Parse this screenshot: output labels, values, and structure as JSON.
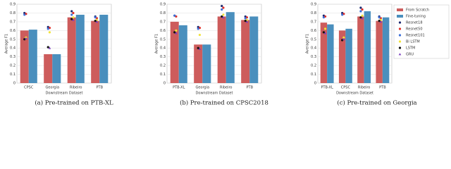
{
  "chart_data": [
    {
      "type": "bar",
      "caption": "(a) Pre-trained on PTB-XL",
      "x_label": "Downstream Dataset",
      "y_label": "Average F1",
      "categories": [
        "CPSC",
        "Georgia",
        "Ribeiro",
        "PTB"
      ],
      "ylim": [
        0,
        0.9
      ],
      "yticks": [
        0,
        0.1,
        0.2,
        0.3,
        0.4,
        0.5,
        0.6,
        0.7,
        0.8,
        0.9
      ],
      "legend": false,
      "series": [
        {
          "name": "From Scratch",
          "color": "#cd5c5c",
          "values": [
            0.6,
            0.33,
            0.75,
            0.71
          ]
        },
        {
          "name": "Fine-tuning",
          "color": "#4a8fbd",
          "values": [
            0.61,
            0.33,
            0.78,
            0.78
          ]
        },
        {
          "name": "Resnet18",
          "color": "#1c2a70",
          "marker": "circle",
          "values": [
            0.8,
            0.64,
            0.82,
            0.76
          ]
        },
        {
          "name": "Resnet50",
          "color": "#e0302a",
          "marker": "circle",
          "values": [
            0.79,
            0.63,
            0.8,
            0.74
          ]
        },
        {
          "name": "Resnet101",
          "color": "#3c6fd8",
          "marker": "circle",
          "values": [
            0.78,
            0.62,
            0.78,
            0.75
          ]
        },
        {
          "name": "Bi LSTM",
          "color": "#f2e33c",
          "marker": "circle",
          "values": [
            0.52,
            0.58,
            0.75,
            0.72
          ]
        },
        {
          "name": "LSTM",
          "color": "#111111",
          "marker": "circle",
          "values": [
            0.5,
            0.41,
            0.73,
            0.71
          ]
        },
        {
          "name": "GRU",
          "color": "#7b3fbf",
          "marker": "triangle",
          "values": [
            0.51,
            0.4,
            0.72,
            0.7
          ]
        }
      ]
    },
    {
      "type": "bar",
      "caption": "(b) Pre-trained on CPSC2018",
      "x_label": "Downstream Dataset",
      "y_label": "Average F1",
      "categories": [
        "PTB-XL",
        "Georgia",
        "Ribeiro",
        "PTB"
      ],
      "ylim": [
        0,
        0.9
      ],
      "yticks": [
        0,
        0.1,
        0.2,
        0.3,
        0.4,
        0.5,
        0.6,
        0.7,
        0.8,
        0.9
      ],
      "legend": false,
      "series": [
        {
          "name": "From Scratch",
          "color": "#cd5c5c",
          "values": [
            0.7,
            0.44,
            0.76,
            0.72
          ]
        },
        {
          "name": "Fine-tuning",
          "color": "#4a8fbd",
          "values": [
            0.66,
            0.44,
            0.81,
            0.76
          ]
        },
        {
          "name": "Resnet18",
          "color": "#1c2a70",
          "marker": "circle",
          "values": [
            0.77,
            0.64,
            0.88,
            0.76
          ]
        },
        {
          "name": "Resnet50",
          "color": "#e0302a",
          "marker": "circle",
          "values": [
            0.76,
            0.63,
            0.86,
            0.75
          ]
        },
        {
          "name": "Resnet101",
          "color": "#3c6fd8",
          "marker": "circle",
          "values": [
            0.77,
            0.62,
            0.84,
            0.74
          ]
        },
        {
          "name": "Bi LSTM",
          "color": "#f2e33c",
          "marker": "circle",
          "values": [
            0.6,
            0.55,
            0.78,
            0.72
          ]
        },
        {
          "name": "LSTM",
          "color": "#111111",
          "marker": "circle",
          "values": [
            0.58,
            0.4,
            0.76,
            0.71
          ]
        },
        {
          "name": "GRU",
          "color": "#7b3fbf",
          "marker": "triangle",
          "values": [
            0.57,
            0.39,
            0.75,
            0.7
          ]
        }
      ]
    },
    {
      "type": "bar",
      "caption": "(c) Pre-trained on Georgia",
      "x_label": "Downstream Dataset",
      "y_label": "Average F1",
      "categories": [
        "PTB-XL",
        "CPSC",
        "Ribeiro",
        "PTB"
      ],
      "ylim": [
        0,
        0.9
      ],
      "yticks": [
        0,
        0.1,
        0.2,
        0.3,
        0.4,
        0.5,
        0.6,
        0.7,
        0.8,
        0.9
      ],
      "legend": true,
      "series": [
        {
          "name": "From Scratch",
          "color": "#cd5c5c",
          "values": [
            0.69,
            0.6,
            0.76,
            0.71
          ]
        },
        {
          "name": "Fine-tuning",
          "color": "#4a8fbd",
          "values": [
            0.67,
            0.62,
            0.82,
            0.75
          ]
        },
        {
          "name": "Resnet18",
          "color": "#1c2a70",
          "marker": "circle",
          "values": [
            0.77,
            0.8,
            0.86,
            0.76
          ]
        },
        {
          "name": "Resnet50",
          "color": "#e0302a",
          "marker": "circle",
          "values": [
            0.76,
            0.79,
            0.84,
            0.74
          ]
        },
        {
          "name": "Resnet101",
          "color": "#3c6fd8",
          "marker": "circle",
          "values": [
            0.75,
            0.78,
            0.82,
            0.75
          ]
        },
        {
          "name": "Bi LSTM",
          "color": "#f2e33c",
          "marker": "circle",
          "values": [
            0.62,
            0.52,
            0.77,
            0.72
          ]
        },
        {
          "name": "LSTM",
          "color": "#111111",
          "marker": "circle",
          "values": [
            0.58,
            0.49,
            0.75,
            0.71
          ]
        },
        {
          "name": "GRU",
          "color": "#7b3fbf",
          "marker": "triangle",
          "values": [
            0.57,
            0.5,
            0.74,
            0.7
          ]
        }
      ]
    }
  ]
}
